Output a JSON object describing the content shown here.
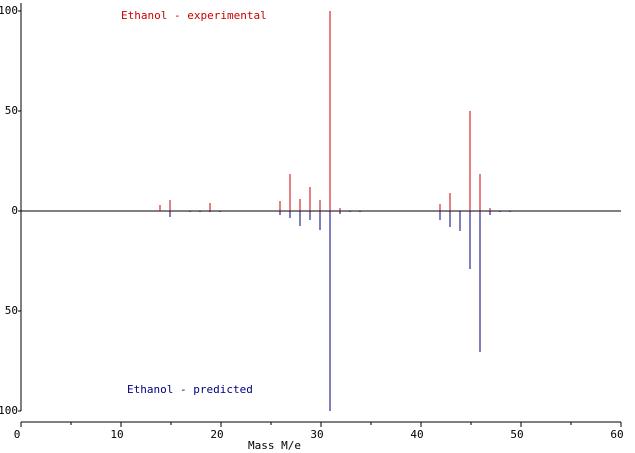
{
  "chart_data": {
    "type": "bar",
    "xlabel": "Mass M/e",
    "xlim": [
      0,
      60
    ],
    "xticks": [
      0,
      10,
      20,
      30,
      40,
      50,
      60
    ],
    "xminor": [
      5,
      15,
      25,
      35,
      45,
      55
    ],
    "ylim": [
      -100,
      100
    ],
    "yticks": [
      100,
      50,
      0,
      {
        "value": -50,
        "label": "50"
      },
      {
        "value": -100,
        "label": "100"
      }
    ],
    "series": [
      {
        "name": "Ethanol - experimental",
        "color": "#cc0000",
        "x": [
          14,
          15,
          19,
          26,
          27,
          28,
          29,
          30,
          31,
          32,
          42,
          43,
          45,
          46,
          47
        ],
        "values": [
          3,
          5.5,
          4,
          5,
          18.5,
          6,
          12,
          5.5,
          100,
          1.5,
          3.5,
          9,
          50,
          18.5,
          1.5
        ]
      },
      {
        "name": "Ethanol - predicted",
        "color": "#000080",
        "x": [
          15,
          17,
          18,
          19,
          20,
          26,
          27,
          28,
          29,
          30,
          31,
          32,
          33,
          34,
          42,
          43,
          44,
          45,
          46,
          47,
          48,
          49
        ],
        "values": [
          -3,
          -0.5,
          -0.5,
          -0.5,
          -0.5,
          -2,
          -3.5,
          -7.5,
          -4.5,
          -9.5,
          -100,
          -1.5,
          -0.5,
          -0.5,
          -4.5,
          -8,
          -10,
          -29,
          -70.5,
          -2,
          -0.5,
          -0.5
        ]
      }
    ]
  }
}
